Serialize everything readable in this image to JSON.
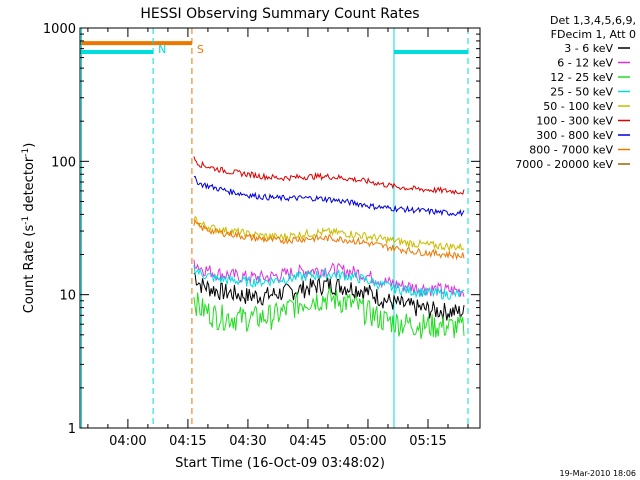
{
  "chart_data": {
    "type": "line",
    "title": "HESSI Observing Summary Count Rates",
    "xlabel": "Start Time (16-Oct-09 03:48:02)",
    "ylabel_main": "Count Rate (s",
    "ylabel_sup1": "-1",
    "ylabel_mid": " detector",
    "ylabel_sup2": "-1",
    "ylabel_end": ")",
    "yscale": "log",
    "xlim_min": [
      228.03,
      328
    ],
    "ylim": [
      1,
      1000
    ],
    "x_ticks": [
      {
        "min": 240,
        "label": "04:00"
      },
      {
        "min": 255,
        "label": "04:15"
      },
      {
        "min": 270,
        "label": "04:30"
      },
      {
        "min": 285,
        "label": "04:45"
      },
      {
        "min": 300,
        "label": "05:00"
      },
      {
        "min": 315,
        "label": "05:15"
      }
    ],
    "y_ticks": [
      {
        "value": 1,
        "label": "1"
      },
      {
        "value": 10,
        "label": "10"
      },
      {
        "value": 100,
        "label": "100"
      },
      {
        "value": 1000,
        "label": "1000"
      }
    ],
    "legend_header": [
      "Det 1,3,4,5,6,9,",
      "FDecim 1, Att 0"
    ],
    "legend_placement": "outside-right",
    "footer_date": "19-Mar-2010 18:06",
    "series": [
      {
        "name": "3 - 6 keV",
        "color": "#000000",
        "x": [
          256.5,
          258,
          262,
          266,
          270,
          274,
          278,
          282,
          286,
          290,
          294,
          298,
          301,
          304,
          308,
          312,
          316,
          320,
          324
        ],
        "y": [
          14.5,
          12,
          10.8,
          10.3,
          9.8,
          9.8,
          10.3,
          10.8,
          11.5,
          12,
          11.6,
          11,
          10.2,
          9.2,
          8.5,
          8.0,
          7.7,
          7.5,
          7.4
        ]
      },
      {
        "name": "6 - 12 keV",
        "color": "#dd33dd",
        "x": [
          256.5,
          258,
          262,
          266,
          270,
          274,
          278,
          282,
          286,
          290,
          294,
          298,
          301,
          304,
          308,
          312,
          316,
          320,
          324
        ],
        "y": [
          18,
          16,
          14.5,
          14,
          13.5,
          13.5,
          14,
          14.8,
          15.2,
          15.5,
          15.2,
          14.5,
          13.5,
          12.5,
          11.8,
          11.3,
          11.0,
          10.8,
          10.7
        ]
      },
      {
        "name": "12 - 25 keV",
        "color": "#22dd22",
        "x": [
          256.5,
          258,
          262,
          266,
          270,
          274,
          278,
          282,
          286,
          290,
          294,
          298,
          301,
          304,
          308,
          312,
          316,
          320,
          324
        ],
        "y": [
          9.5,
          8,
          7,
          6.8,
          6.7,
          6.8,
          7.2,
          8.5,
          9.3,
          9.5,
          9.0,
          8.0,
          7.2,
          6.5,
          6.2,
          6.0,
          5.9,
          5.8,
          5.7
        ]
      },
      {
        "name": "25 - 50 keV",
        "color": "#00dddd",
        "x": [
          256.5,
          258,
          262,
          266,
          270,
          274,
          278,
          282,
          286,
          290,
          294,
          298,
          301,
          304,
          308,
          312,
          316,
          320,
          324
        ],
        "y": [
          16,
          14.5,
          13.2,
          12.8,
          12.5,
          12.6,
          13,
          13.5,
          14,
          14.3,
          14,
          13.3,
          12.5,
          11.7,
          11.0,
          10.6,
          10.3,
          10.1,
          10.0
        ]
      },
      {
        "name": "50 - 100 keV",
        "color": "#ccbb00",
        "x": [
          256.5,
          258,
          262,
          266,
          270,
          274,
          278,
          282,
          286,
          290,
          294,
          298,
          301,
          304,
          308,
          312,
          316,
          320,
          324
        ],
        "y": [
          38,
          34,
          31,
          30,
          28.5,
          27.5,
          27,
          28,
          29,
          29.5,
          29,
          28,
          27,
          26,
          25,
          24,
          23.5,
          23,
          22.8
        ]
      },
      {
        "name": "100 - 300 keV",
        "color": "#dd0000",
        "x": [
          256.5,
          258,
          262,
          266,
          270,
          274,
          278,
          282,
          286,
          290,
          294,
          298,
          301,
          304,
          308,
          312,
          316,
          320,
          324
        ],
        "y": [
          105,
          95,
          88,
          83,
          80,
          77,
          75,
          76,
          77,
          77,
          75,
          72,
          70,
          67,
          64,
          62,
          61,
          60,
          59
        ]
      },
      {
        "name": "300 - 800 keV",
        "color": "#0000dd",
        "x": [
          256.5,
          258,
          262,
          266,
          270,
          274,
          278,
          282,
          286,
          290,
          294,
          298,
          301,
          304,
          308,
          312,
          316,
          320,
          324
        ],
        "y": [
          75,
          68,
          63,
          59,
          56,
          54,
          53,
          53,
          53,
          52,
          50,
          48,
          46,
          45,
          44,
          43,
          42,
          41,
          41
        ]
      },
      {
        "name": "800 - 7000 keV",
        "color": "#ee7700",
        "x": [
          256.5,
          258,
          262,
          266,
          270,
          274,
          278,
          282,
          286,
          290,
          294,
          298,
          301,
          304,
          308,
          312,
          316,
          320,
          324
        ],
        "y": [
          35,
          32,
          29.5,
          28.5,
          27,
          26,
          25.5,
          26,
          26.5,
          26.5,
          26,
          25,
          24,
          23,
          22,
          21,
          20.5,
          20,
          19.5
        ]
      },
      {
        "name": "7000 - 20000 keV",
        "color": "#996600",
        "x": [],
        "y": []
      }
    ],
    "attenuator_bars": [
      {
        "color": "#ee7700",
        "x": [
          228.03,
          256
        ],
        "y": 770
      },
      {
        "color": "#00dddd",
        "x": [
          228.03,
          246.3
        ],
        "y": 660
      },
      {
        "color": "#00dddd",
        "x": [
          306.5,
          325
        ],
        "y": 660
      }
    ],
    "event_lines": [
      {
        "color": "#00dddd",
        "style": "dashed",
        "x": 246.3,
        "label": "N"
      },
      {
        "color": "#ee7700",
        "style": "dashed",
        "x": 256,
        "label": "S"
      },
      {
        "color": "#00dddd",
        "style": "solid",
        "x": 228.4,
        "label": ""
      },
      {
        "color": "#00dddd",
        "style": "solid",
        "x": 306.5,
        "label": ""
      },
      {
        "color": "#00dddd",
        "style": "dashed",
        "x": 325,
        "label": ""
      }
    ]
  }
}
